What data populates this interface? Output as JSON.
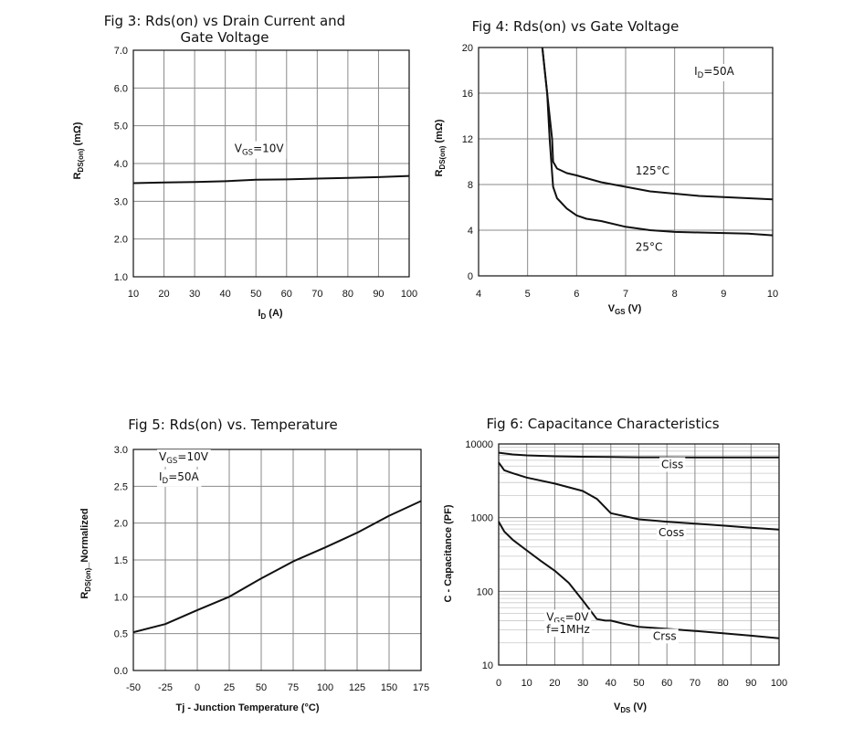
{
  "chart_data": [
    {
      "type": "line",
      "title": "Fig 3: Rds(on) vs Drain Current and",
      "title_line2": "Gate Voltage",
      "xlabel": "I_D (A)",
      "ylabel": "R_DS(on) (mΩ)",
      "xlim": [
        10,
        100
      ],
      "ylim": [
        1.0,
        7.0
      ],
      "xticks": [
        "10",
        "20",
        "30",
        "40",
        "50",
        "60",
        "70",
        "80",
        "90",
        "100"
      ],
      "yticks": [
        "1.0",
        "2.0",
        "3.0",
        "4.0",
        "5.0",
        "6.0",
        "7.0"
      ],
      "series": [
        {
          "name": "VGS=10V",
          "x": [
            10,
            20,
            30,
            40,
            50,
            60,
            70,
            80,
            90,
            100
          ],
          "y": [
            3.48,
            3.5,
            3.51,
            3.53,
            3.57,
            3.58,
            3.6,
            3.62,
            3.64,
            3.67
          ]
        }
      ],
      "annotations": [
        {
          "text": "V_GS=10V",
          "x": 43,
          "y": 4.3
        }
      ]
    },
    {
      "type": "line",
      "title": "Fig 4: Rds(on) vs Gate Voltage",
      "xlabel": "V_GS (V)",
      "ylabel": "R_DS(on) (mΩ)",
      "xlim": [
        4,
        10
      ],
      "ylim": [
        0,
        20
      ],
      "xticks": [
        "4",
        "5",
        "6",
        "7",
        "8",
        "9",
        "10"
      ],
      "yticks": [
        "0",
        "4",
        "8",
        "12",
        "16",
        "20"
      ],
      "series": [
        {
          "name": "125°C",
          "x": [
            5.3,
            5.4,
            5.5,
            5.52,
            5.6,
            5.8,
            6.0,
            6.5,
            7.0,
            7.5,
            8.0,
            8.5,
            9.0,
            9.5,
            10.0
          ],
          "y": [
            20,
            16,
            12,
            10,
            9.4,
            9.0,
            8.8,
            8.2,
            7.8,
            7.4,
            7.2,
            7.0,
            6.9,
            6.8,
            6.7
          ]
        },
        {
          "name": "25°C",
          "x": [
            5.3,
            5.4,
            5.45,
            5.5,
            5.52,
            5.6,
            5.8,
            6.0,
            6.2,
            6.5,
            7.0,
            7.5,
            8.0,
            8.5,
            9.0,
            9.5,
            10.0
          ],
          "y": [
            20,
            16,
            12,
            9.0,
            7.8,
            6.8,
            5.9,
            5.3,
            5.0,
            4.8,
            4.3,
            4.0,
            3.85,
            3.8,
            3.75,
            3.7,
            3.55
          ]
        }
      ],
      "annotations": [
        {
          "text": "I_D=50A",
          "x": 8.4,
          "y": 17.6
        },
        {
          "text": "125°C",
          "x": 7.2,
          "y": 8.9
        },
        {
          "text": "25°C",
          "x": 7.2,
          "y": 2.2
        }
      ]
    },
    {
      "type": "line",
      "title": "Fig 5: Rds(on) vs. Temperature",
      "xlabel": "Tj - Junction Temperature (°C)",
      "ylabel": "R_DS(on)_Normalized",
      "xlim": [
        -50,
        175
      ],
      "ylim": [
        0,
        3.0
      ],
      "xticks": [
        "-50",
        "-25",
        "0",
        "25",
        "50",
        "75",
        "100",
        "125",
        "150",
        "175"
      ],
      "yticks": [
        "0.0",
        "0.5",
        "1.0",
        "1.5",
        "2.0",
        "2.5",
        "3.0"
      ],
      "series": [
        {
          "name": "VGS=10V, ID=50A",
          "x": [
            -50,
            -25,
            0,
            25,
            50,
            75,
            100,
            125,
            150,
            175
          ],
          "y": [
            0.52,
            0.63,
            0.82,
            1.0,
            1.25,
            1.48,
            1.67,
            1.87,
            2.1,
            2.3
          ]
        }
      ],
      "annotations": [
        {
          "text": "V_GS=10V",
          "x": -30,
          "y": 2.85
        },
        {
          "text": "I_D=50A",
          "x": -30,
          "y": 2.58
        }
      ]
    },
    {
      "type": "line",
      "title": "Fig 6: Capacitance Characteristics",
      "xlabel": "V_DS (V)",
      "ylabel": "C - Capacitance (PF)",
      "xlim": [
        0,
        100
      ],
      "ylim": [
        10,
        10000
      ],
      "yscale": "log",
      "xticks": [
        "0",
        "10",
        "20",
        "30",
        "40",
        "50",
        "60",
        "70",
        "80",
        "90",
        "100"
      ],
      "yticks": [
        "10",
        "100",
        "1000",
        "10000"
      ],
      "series": [
        {
          "name": "Ciss",
          "x": [
            0,
            5,
            10,
            20,
            30,
            40,
            50,
            60,
            70,
            80,
            90,
            100
          ],
          "y": [
            7600,
            7200,
            7000,
            6800,
            6700,
            6650,
            6600,
            6600,
            6580,
            6560,
            6550,
            6550
          ]
        },
        {
          "name": "Coss",
          "x": [
            0,
            2,
            5,
            10,
            20,
            30,
            35,
            40,
            50,
            60,
            70,
            80,
            90,
            100
          ],
          "y": [
            5600,
            4400,
            4000,
            3500,
            2900,
            2300,
            1800,
            1150,
            950,
            880,
            830,
            780,
            730,
            690
          ]
        },
        {
          "name": "Crss",
          "x": [
            0,
            2,
            5,
            10,
            15,
            20,
            25,
            30,
            35,
            38,
            40,
            45,
            50,
            60,
            70,
            80,
            90,
            100
          ],
          "y": [
            880,
            650,
            500,
            360,
            260,
            190,
            130,
            75,
            42,
            40,
            40,
            36,
            33,
            31,
            29,
            27,
            25,
            23
          ]
        }
      ],
      "annotations": [
        {
          "text": "Ciss",
          "x": 58,
          "y": 4700
        },
        {
          "text": "Coss",
          "x": 57,
          "y": 560
        },
        {
          "text": "Crss",
          "x": 55,
          "y": 22
        },
        {
          "text": "V_GS=0V",
          "x": 17,
          "y": 40
        },
        {
          "text": "f=1MHz",
          "x": 17,
          "y": 27
        }
      ]
    }
  ]
}
